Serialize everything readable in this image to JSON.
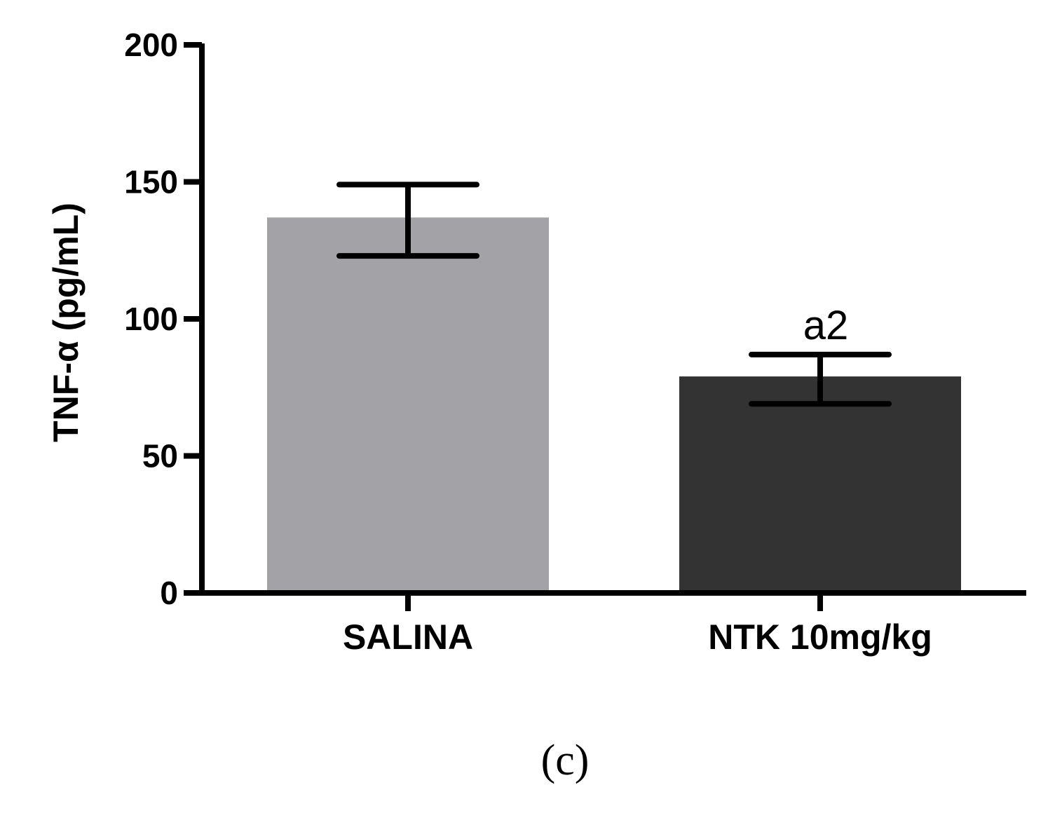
{
  "chart_data": {
    "type": "bar",
    "categories": [
      "SALINA",
      "NTK 10mg/kg"
    ],
    "values": [
      137,
      79
    ],
    "errors": [
      {
        "upper": 149,
        "lower": 123
      },
      {
        "upper": 87,
        "lower": 69
      }
    ],
    "colors": [
      "#a3a2a6",
      "#333333"
    ],
    "annotations": [
      "",
      "a2"
    ],
    "ylabel": "TNF-α (pg/mL)",
    "xlabel": "",
    "ylim": [
      0,
      200
    ],
    "yticks": [
      "0",
      "50",
      "100",
      "150",
      "200"
    ],
    "grid": false,
    "panel_label": "(c)"
  }
}
